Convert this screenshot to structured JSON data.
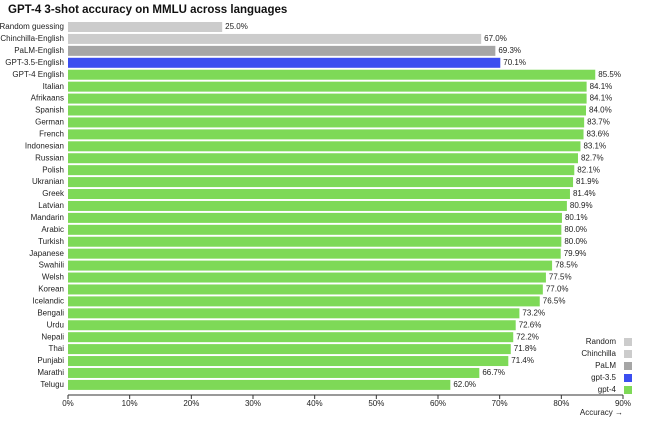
{
  "chart_data": {
    "type": "bar",
    "orientation": "horizontal",
    "title": "GPT-4 3-shot accuracy on MMLU across languages",
    "x_label": "Accuracy →",
    "categories": [
      "Random guessing",
      "Chinchilla-English",
      "PaLM-English",
      "GPT-3.5-English",
      "GPT-4 English",
      "Italian",
      "Afrikaans",
      "Spanish",
      "German",
      "French",
      "Indonesian",
      "Russian",
      "Polish",
      "Ukranian",
      "Greek",
      "Latvian",
      "Mandarin",
      "Arabic",
      "Turkish",
      "Japanese",
      "Swahili",
      "Welsh",
      "Korean",
      "Icelandic",
      "Bengali",
      "Urdu",
      "Nepali",
      "Thai",
      "Punjabi",
      "Marathi",
      "Telugu"
    ],
    "series": [
      {
        "name": "Random",
        "color": "#cccccc",
        "values": [
          25.0,
          null,
          null,
          null,
          null,
          null,
          null,
          null,
          null,
          null,
          null,
          null,
          null,
          null,
          null,
          null,
          null,
          null,
          null,
          null,
          null,
          null,
          null,
          null,
          null,
          null,
          null,
          null,
          null,
          null,
          null
        ],
        "value_labels": [
          "25.0%",
          null,
          null,
          null,
          null,
          null,
          null,
          null,
          null,
          null,
          null,
          null,
          null,
          null,
          null,
          null,
          null,
          null,
          null,
          null,
          null,
          null,
          null,
          null,
          null,
          null,
          null,
          null,
          null,
          null,
          null
        ]
      },
      {
        "name": "Chinchilla",
        "color": "#cccccc",
        "values": [
          null,
          67.0,
          null,
          null,
          null,
          null,
          null,
          null,
          null,
          null,
          null,
          null,
          null,
          null,
          null,
          null,
          null,
          null,
          null,
          null,
          null,
          null,
          null,
          null,
          null,
          null,
          null,
          null,
          null,
          null,
          null
        ],
        "value_labels": [
          null,
          "67.0%",
          null,
          null,
          null,
          null,
          null,
          null,
          null,
          null,
          null,
          null,
          null,
          null,
          null,
          null,
          null,
          null,
          null,
          null,
          null,
          null,
          null,
          null,
          null,
          null,
          null,
          null,
          null,
          null,
          null
        ]
      },
      {
        "name": "PaLM",
        "color": "#a6a6a6",
        "values": [
          null,
          null,
          69.3,
          null,
          null,
          null,
          null,
          null,
          null,
          null,
          null,
          null,
          null,
          null,
          null,
          null,
          null,
          null,
          null,
          null,
          null,
          null,
          null,
          null,
          null,
          null,
          null,
          null,
          null,
          null,
          null
        ],
        "value_labels": [
          null,
          null,
          "69.3%",
          null,
          null,
          null,
          null,
          null,
          null,
          null,
          null,
          null,
          null,
          null,
          null,
          null,
          null,
          null,
          null,
          null,
          null,
          null,
          null,
          null,
          null,
          null,
          null,
          null,
          null,
          null,
          null
        ]
      },
      {
        "name": "gpt-3.5",
        "color": "#3b4ef0",
        "values": [
          null,
          null,
          null,
          70.1,
          null,
          null,
          null,
          null,
          null,
          null,
          null,
          null,
          null,
          null,
          null,
          null,
          null,
          null,
          null,
          null,
          null,
          null,
          null,
          null,
          null,
          null,
          null,
          null,
          null,
          null,
          null
        ],
        "value_labels": [
          null,
          null,
          null,
          "70.1%",
          null,
          null,
          null,
          null,
          null,
          null,
          null,
          null,
          null,
          null,
          null,
          null,
          null,
          null,
          null,
          null,
          null,
          null,
          null,
          null,
          null,
          null,
          null,
          null,
          null,
          null,
          null
        ]
      },
      {
        "name": "gpt-4",
        "color": "#7ed957",
        "values": [
          null,
          null,
          null,
          null,
          85.5,
          84.1,
          84.1,
          84.0,
          83.7,
          83.6,
          83.1,
          82.7,
          82.1,
          81.9,
          81.4,
          80.9,
          80.1,
          80.0,
          80.0,
          79.9,
          78.5,
          77.5,
          77.0,
          76.5,
          73.2,
          72.6,
          72.2,
          71.8,
          71.4,
          66.7,
          62.0
        ],
        "value_labels": [
          null,
          null,
          null,
          null,
          "85.5%",
          "84.1%",
          "84.1%",
          "84.0%",
          "83.7%",
          "83.6%",
          "83.1%",
          "82.7%",
          "82.1%",
          "81.9%",
          "81.4%",
          "80.9%",
          "80.1%",
          "80.0%",
          "80.0%",
          "79.9%",
          "78.5%",
          "77.5%",
          "77.0%",
          "76.5%",
          "73.2%",
          "72.6%",
          "72.2%",
          "71.8%",
          "71.4%",
          "66.7%",
          "62.0%"
        ]
      }
    ],
    "xlim": [
      0,
      90
    ],
    "xticks": [
      {
        "value": 0,
        "label": "0%"
      },
      {
        "value": 10,
        "label": "10%"
      },
      {
        "value": 20,
        "label": "20%"
      },
      {
        "value": 30,
        "label": "30%"
      },
      {
        "value": 40,
        "label": "40%"
      },
      {
        "value": 50,
        "label": "50%"
      },
      {
        "value": 60,
        "label": "60%"
      },
      {
        "value": 70,
        "label": "70%"
      },
      {
        "value": 80,
        "label": "80%"
      },
      {
        "value": 90,
        "label": "90%"
      }
    ],
    "legend_position": "lower right"
  }
}
